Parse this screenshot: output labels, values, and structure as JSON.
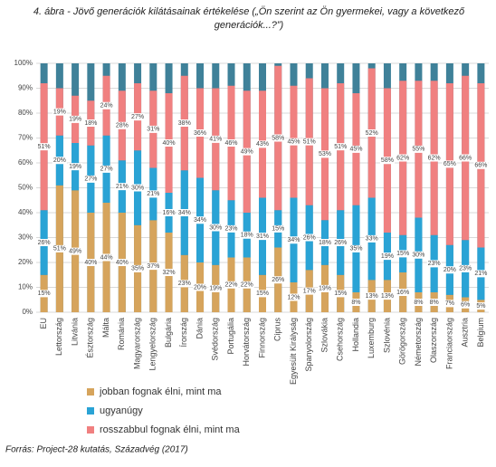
{
  "chart_data": {
    "type": "stacked_bar",
    "title": "4. ábra - Jövő generációk kilátásainak értékelése („Ön szerint az Ön gyermekei, vagy a következő generációk...?”)",
    "source": "Forrás: Project-28 kutatás, Századvég (2017)",
    "categories": [
      "EU",
      "Lettország",
      "Litvánia",
      "Észtország",
      "Málta",
      "Románia",
      "Magyarország",
      "Lengyelország",
      "Bulgária",
      "Írország",
      "Dánia",
      "Svédország",
      "Portugália",
      "Horvátország",
      "Finnország",
      "Ciprus",
      "Egyesült Királyság",
      "Spanyolország",
      "Szlovákia",
      "Csehország",
      "Hollandia",
      "Luxemburg",
      "Szlovénia",
      "Görögország",
      "Németország",
      "Olaszország",
      "Franciaország",
      "Ausztria",
      "Belgium"
    ],
    "series": [
      {
        "name": "jobban fognak élni, mint ma",
        "color": "#d6a45c",
        "values": [
          15,
          51,
          49,
          40,
          44,
          40,
          35,
          37,
          32,
          23,
          20,
          19,
          22,
          22,
          15,
          26,
          12,
          17,
          19,
          15,
          8,
          13,
          13,
          16,
          8,
          8,
          7,
          6,
          5
        ],
        "value_labels": [
          "15%",
          "51%",
          "49%",
          "40%",
          "44%",
          "40%",
          "35%",
          "37%",
          "32%",
          "23%",
          "20%",
          "19%",
          "22%",
          "22%",
          "15%",
          "26%",
          "12%",
          "17%",
          "19%",
          "15%",
          "8%",
          "13%",
          "13%",
          "16%",
          "8%",
          "8%",
          "7%",
          "6%",
          "5%"
        ]
      },
      {
        "name": "ugyanúgy",
        "color": "#2aa3d5",
        "values": [
          26,
          20,
          19,
          27,
          27,
          21,
          30,
          21,
          16,
          34,
          34,
          30,
          23,
          18,
          31,
          15,
          34,
          26,
          18,
          26,
          35,
          33,
          19,
          15,
          30,
          23,
          20,
          23,
          21
        ],
        "value_labels": [
          "26%",
          "20%",
          "19%",
          "27%",
          "27%",
          "21%",
          "30%",
          "21%",
          "16%",
          "34%",
          "34%",
          "30%",
          "23%",
          "18%",
          "31%",
          "15%",
          "34%",
          "26%",
          "18%",
          "26%",
          "35%",
          "33%",
          "19%",
          "15%",
          "30%",
          "23%",
          "20%",
          "23%",
          "21%"
        ]
      },
      {
        "name": "rosszabbul fognak élni, mint ma",
        "color": "#f08080",
        "values": [
          51,
          19,
          19,
          18,
          24,
          28,
          27,
          31,
          40,
          38,
          36,
          41,
          46,
          49,
          43,
          58,
          45,
          51,
          53,
          51,
          45,
          52,
          58,
          62,
          55,
          62,
          65,
          66,
          66
        ],
        "value_labels": [
          "51%",
          "19%",
          "19%",
          "18%",
          "24%",
          "28%",
          "27%",
          "31%",
          "40%",
          "38%",
          "36%",
          "41%",
          "46%",
          "49%",
          "43%",
          "58%",
          "45%",
          "51%",
          "53%",
          "51%",
          "45%",
          "52%",
          "58%",
          "62%",
          "55%",
          "62%",
          "65%",
          "66%",
          "66%"
        ]
      }
    ],
    "ylim": [
      0,
      100
    ],
    "yticks": [
      {
        "value": 0,
        "label": "0%"
      },
      {
        "value": 10,
        "label": "10%"
      },
      {
        "value": 20,
        "label": "20%"
      },
      {
        "value": 30,
        "label": "30%"
      },
      {
        "value": 40,
        "label": "40%"
      },
      {
        "value": 50,
        "label": "50%"
      },
      {
        "value": 60,
        "label": "60%"
      },
      {
        "value": 70,
        "label": "70%"
      },
      {
        "value": 80,
        "label": "80%"
      },
      {
        "value": 90,
        "label": "90%"
      },
      {
        "value": 100,
        "label": "100%"
      }
    ],
    "grid": true
  }
}
